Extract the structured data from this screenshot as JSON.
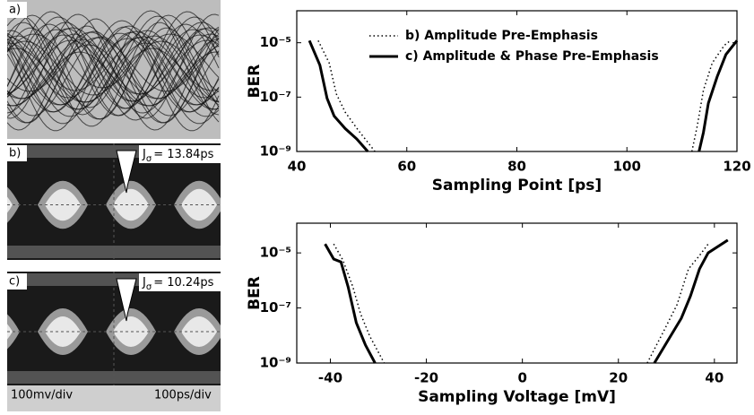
{
  "chart_data": [
    {
      "type": "line",
      "ylabel": "BER",
      "xlabel": "Sampling Point [ps]",
      "log_y": true,
      "legend": "top",
      "xlim": [
        40,
        120
      ],
      "xticks": [
        40,
        60,
        80,
        100,
        120
      ],
      "ylim": [
        1e-09,
        0.00015
      ],
      "yticks": [
        {
          "value": 1e-09,
          "label": "10⁻⁹"
        },
        {
          "value": 1e-07,
          "label": "10⁻⁷"
        },
        {
          "value": 1e-05,
          "label": "10⁻⁵"
        }
      ],
      "series": [
        {
          "name": "b) Amplitude Pre-Emphasis",
          "color": "#000000",
          "style": "dotted",
          "x": [
            43.9,
            45.9,
            47.2,
            48.8,
            51.2,
            54.2,
            null,
            111.8,
            112.8,
            113.9,
            115.5,
            117.7,
            118.8
          ],
          "values": [
            1.2e-05,
            1.8e-06,
            1.3e-07,
            2.8e-08,
            6e-09,
            1e-09,
            null,
            1e-09,
            9e-09,
            1.8e-07,
            1.8e-06,
            8e-06,
            1.2e-05
          ]
        },
        {
          "name": "c) Amplitude & Phase Pre-Emphasis",
          "color": "#000000",
          "style": "solid",
          "x": [
            42.3,
            44.2,
            45.5,
            46.8,
            48.8,
            50.9,
            52.9,
            null,
            113.1,
            113.9,
            114.8,
            116.4,
            118,
            120
          ],
          "values": [
            1.2e-05,
            1.5e-06,
            9e-08,
            2e-08,
            7e-09,
            2.9e-09,
            1e-09,
            null,
            1e-09,
            5e-09,
            6e-08,
            5.6e-07,
            3.7e-06,
            1.2e-05
          ]
        }
      ]
    },
    {
      "type": "line",
      "ylabel": "BER",
      "xlabel": "Sampling Voltage [mV]",
      "log_y": true,
      "xlim": [
        -47,
        44.7
      ],
      "xticks": [
        -40,
        -20,
        0,
        20,
        40
      ],
      "ylim": [
        1e-09,
        0.00012
      ],
      "yticks": [
        {
          "value": 1e-09,
          "label": "10⁻⁹"
        },
        {
          "value": 1e-07,
          "label": "10⁻⁷"
        },
        {
          "value": 1e-05,
          "label": "10⁻⁵"
        }
      ],
      "series": [
        {
          "color": "#000000",
          "style": "dotted",
          "x": [
            -39.3,
            -37.4,
            -35.3,
            -33.7,
            -31.8,
            -28.8,
            null,
            26,
            29.4,
            32.2,
            34.6,
            36.9,
            38.7
          ],
          "values": [
            2.1e-05,
            5.5e-06,
            5.8e-07,
            6.1e-08,
            9.5e-09,
            1e-09,
            null,
            1e-09,
            1.4e-08,
            1.3e-07,
            2.6e-06,
            8e-06,
            2.1e-05
          ]
        },
        {
          "color": "#000000",
          "style": "solid",
          "x": [
            -41.1,
            -39.3,
            -37.8,
            -36.3,
            -34.6,
            -32.7,
            -30.7,
            null,
            27.5,
            30.3,
            33.1,
            35,
            36.9,
            38.7,
            42.8
          ],
          "values": [
            2.1e-05,
            6e-06,
            4.7e-06,
            5.8e-07,
            2.9e-08,
            4.5e-09,
            1e-09,
            null,
            1e-09,
            6.5e-09,
            4.2e-08,
            2.7e-07,
            2.6e-06,
            1e-05,
            2.9e-05
          ]
        }
      ]
    }
  ],
  "eye_diagrams": {
    "panels": [
      {
        "label": "a)"
      },
      {
        "label": "b)",
        "jitter": {
          "symbol": "J",
          "subscript": "σ",
          "value": "= 13.84ps"
        }
      },
      {
        "label": "c)",
        "jitter": {
          "symbol": "J",
          "subscript": "σ",
          "value": "= 10.24ps"
        }
      }
    ],
    "vertical_scale": "100mv/div",
    "horizontal_scale": "100ps/div"
  }
}
